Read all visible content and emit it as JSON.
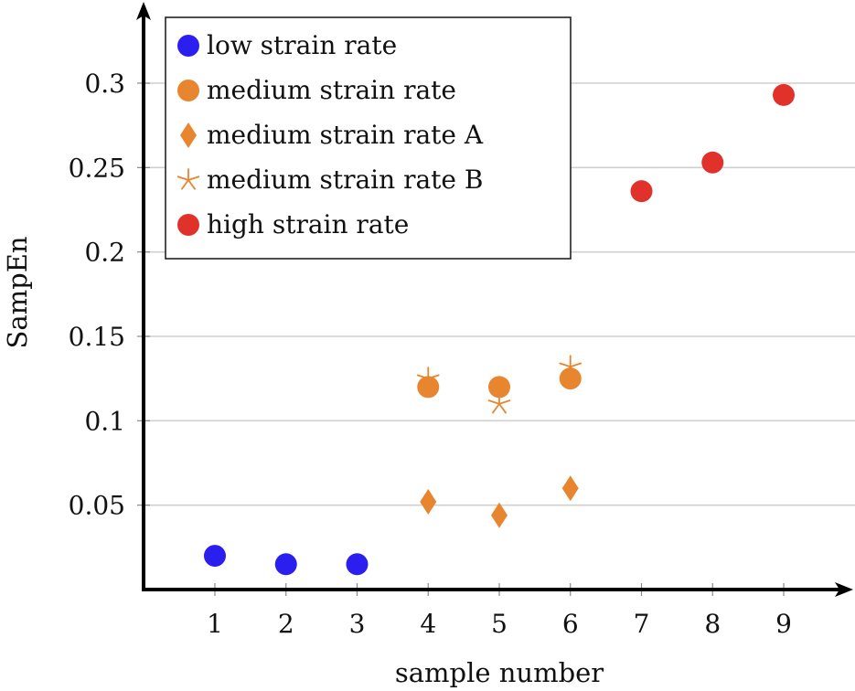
{
  "chart_data": {
    "type": "scatter",
    "title": "",
    "xlabel": "sample number",
    "ylabel": "SampEn",
    "xlim": [
      0,
      9.9
    ],
    "ylim": [
      0,
      0.34
    ],
    "x_ticks": [
      1,
      2,
      3,
      4,
      5,
      6,
      7,
      8,
      9
    ],
    "x_tick_labels": [
      "1",
      "2",
      "3",
      "4",
      "5",
      "6",
      "7",
      "8",
      "9"
    ],
    "y_ticks": [
      0.05,
      0.1,
      0.15,
      0.2,
      0.25,
      0.3
    ],
    "y_tick_labels": [
      "0.05",
      "0.1",
      "0.15",
      "0.2",
      "0.25",
      "0.3"
    ],
    "grid": "horizontal",
    "legend_position": "top-left",
    "series": [
      {
        "name": "low strain rate",
        "marker": "circle",
        "color": "#2b1ff0",
        "points": [
          {
            "x": 1,
            "y": 0.02
          },
          {
            "x": 2,
            "y": 0.015
          },
          {
            "x": 3,
            "y": 0.015
          }
        ]
      },
      {
        "name": "medium strain rate",
        "marker": "circle",
        "color": "#e8852f",
        "points": [
          {
            "x": 4,
            "y": 0.12
          },
          {
            "x": 5,
            "y": 0.12
          },
          {
            "x": 6,
            "y": 0.125
          }
        ]
      },
      {
        "name": "medium strain rate A",
        "marker": "diamond",
        "color": "#e8852f",
        "points": [
          {
            "x": 4,
            "y": 0.052
          },
          {
            "x": 5,
            "y": 0.044
          },
          {
            "x": 6,
            "y": 0.06
          }
        ]
      },
      {
        "name": "medium strain rate B",
        "marker": "asterisk",
        "color": "#e8852f",
        "points": [
          {
            "x": 4,
            "y": 0.125
          },
          {
            "x": 5,
            "y": 0.11
          },
          {
            "x": 6,
            "y": 0.132
          }
        ]
      },
      {
        "name": "high strain rate",
        "marker": "circle",
        "color": "#e0322a",
        "points": [
          {
            "x": 7,
            "y": 0.236
          },
          {
            "x": 8,
            "y": 0.253
          },
          {
            "x": 9,
            "y": 0.293
          }
        ]
      }
    ]
  }
}
